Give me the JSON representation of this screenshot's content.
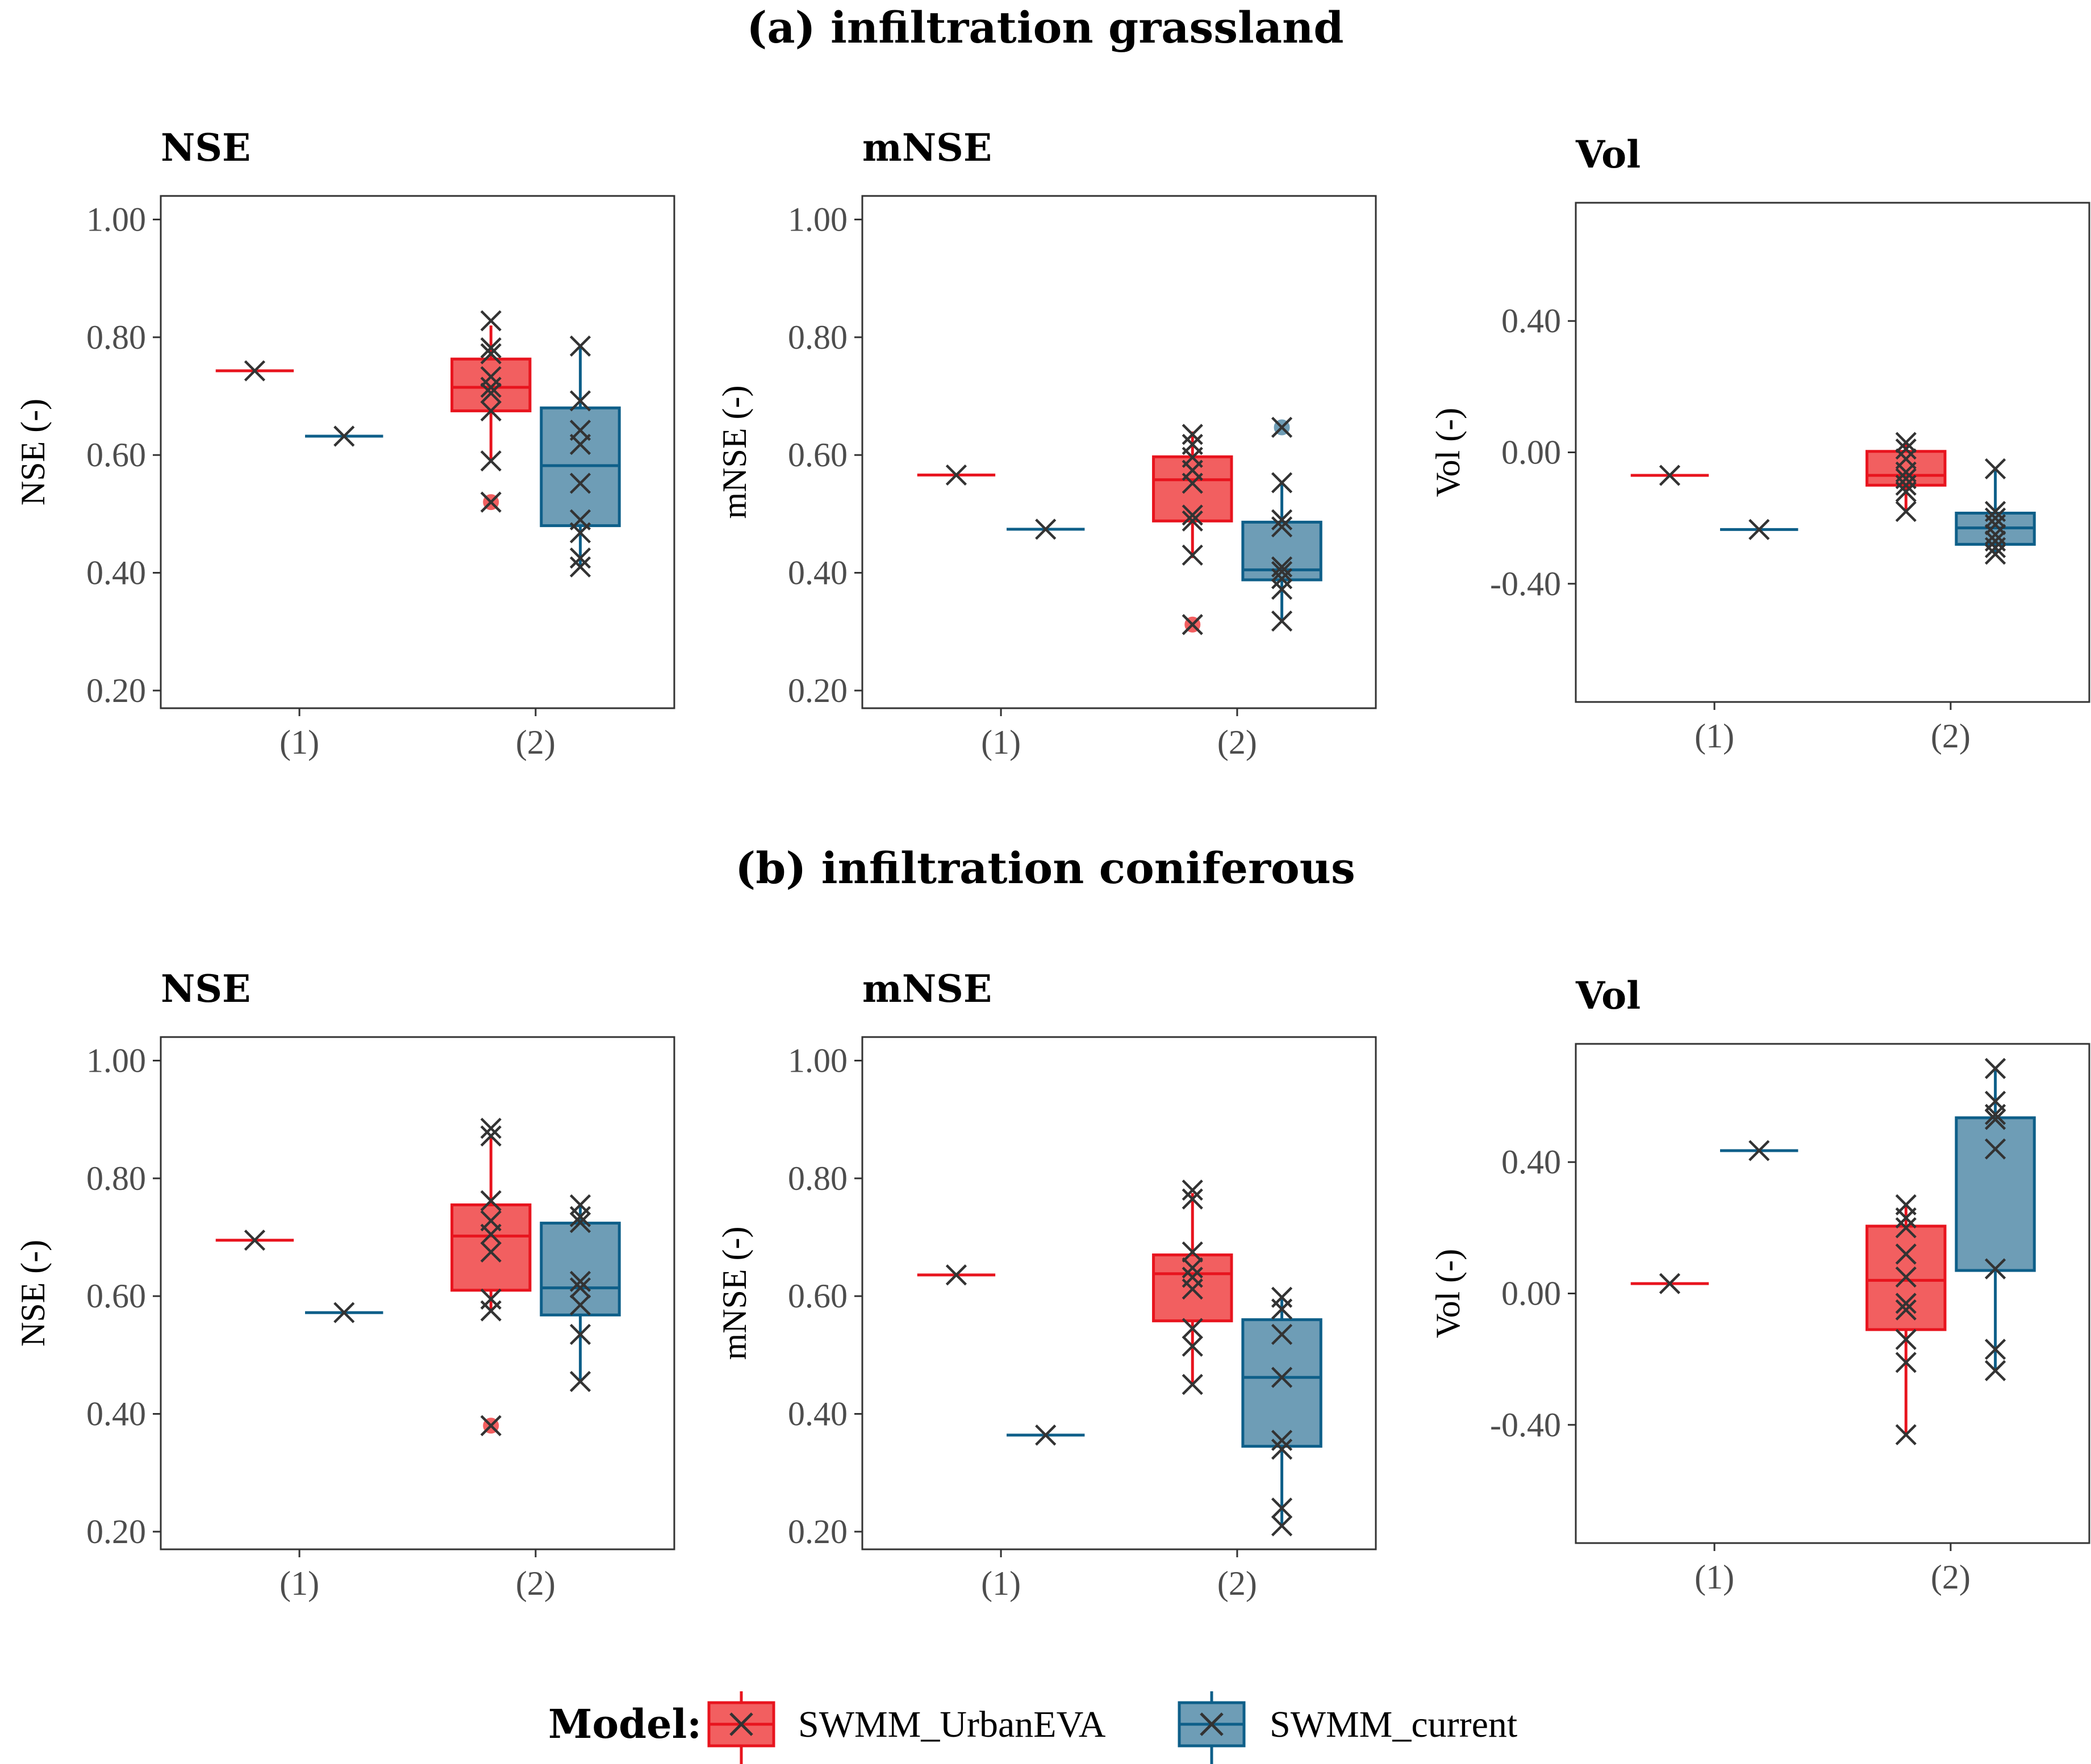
{
  "sections": [
    {
      "title": "(a) infiltration grassland",
      "chart_data": [
        {
          "type": "box",
          "title": "NSE",
          "ylabel": "NSE (-)",
          "ylim": [
            0.17,
            1.04
          ],
          "yticks": [
            1.0,
            0.8,
            0.6,
            0.4,
            0.2
          ],
          "ytick_labels": [
            "1.00",
            "0.80",
            "0.60",
            "0.40",
            "0.20"
          ],
          "categories": [
            "(1)",
            "(2)"
          ],
          "series": [
            {
              "name": "SWMM_UrbanEVA",
              "cat1": {
                "value": 0.743
              },
              "cat2": {
                "q1": 0.675,
                "median": 0.715,
                "q3": 0.763,
                "whisker_low": 0.59,
                "whisker_high": 0.82,
                "outliers": [
                  0.52
                ],
                "points": [
                  0.828,
                  0.782,
                  0.772,
                  0.733,
                  0.715,
                  0.705,
                  0.675,
                  0.59,
                  0.52
                ]
              }
            },
            {
              "name": "SWMM_current",
              "cat1": {
                "value": 0.632
              },
              "cat2": {
                "q1": 0.48,
                "median": 0.582,
                "q3": 0.68,
                "whisker_low": 0.41,
                "whisker_high": 0.785,
                "outliers": [],
                "points": [
                  0.785,
                  0.692,
                  0.642,
                  0.618,
                  0.552,
                  0.49,
                  0.468,
                  0.425,
                  0.41
                ]
              }
            }
          ]
        },
        {
          "type": "box",
          "title": "mNSE",
          "ylabel": "mNSE (-)",
          "ylim": [
            0.17,
            1.04
          ],
          "yticks": [
            1.0,
            0.8,
            0.6,
            0.4,
            0.2
          ],
          "ytick_labels": [
            "1.00",
            "0.80",
            "0.60",
            "0.40",
            "0.20"
          ],
          "categories": [
            "(1)",
            "(2)"
          ],
          "series": [
            {
              "name": "SWMM_UrbanEVA",
              "cat1": {
                "value": 0.566
              },
              "cat2": {
                "q1": 0.488,
                "median": 0.558,
                "q3": 0.597,
                "whisker_low": 0.425,
                "whisker_high": 0.64,
                "outliers": [
                  0.312
                ],
                "points": [
                  0.635,
                  0.618,
                  0.596,
                  0.574,
                  0.552,
                  0.498,
                  0.488,
                  0.43,
                  0.312
                ]
              }
            },
            {
              "name": "SWMM_current",
              "cat1": {
                "value": 0.474
              },
              "cat2": {
                "q1": 0.388,
                "median": 0.405,
                "q3": 0.486,
                "whisker_low": 0.315,
                "whisker_high": 0.555,
                "outliers": [
                  0.647
                ],
                "points": [
                  0.647,
                  0.553,
                  0.49,
                  0.478,
                  0.41,
                  0.402,
                  0.39,
                  0.372,
                  0.318
                ]
              }
            }
          ]
        },
        {
          "type": "box",
          "title": "Vol",
          "ylabel": "Vol (-)",
          "ylim": [
            -0.76,
            0.76
          ],
          "yticks": [
            0.4,
            0.0,
            -0.4
          ],
          "ytick_labels": [
            "0.40",
            "0.00",
            "-0.40"
          ],
          "categories": [
            "(1)",
            "(2)"
          ],
          "series": [
            {
              "name": "SWMM_UrbanEVA",
              "cat1": {
                "value": -0.07
              },
              "cat2": {
                "q1": -0.1,
                "median": -0.07,
                "q3": 0.003,
                "whisker_low": -0.18,
                "whisker_high": 0.03,
                "outliers": [],
                "points": [
                  0.03,
                  0.01,
                  -0.02,
                  -0.06,
                  -0.08,
                  -0.1,
                  -0.12,
                  -0.18
                ]
              }
            },
            {
              "name": "SWMM_current",
              "cat1": {
                "value": -0.235
              },
              "cat2": {
                "q1": -0.28,
                "median": -0.23,
                "q3": -0.185,
                "whisker_low": -0.31,
                "whisker_high": -0.05,
                "outliers": [],
                "points": [
                  -0.05,
                  -0.18,
                  -0.2,
                  -0.22,
                  -0.25,
                  -0.27,
                  -0.29,
                  -0.31
                ]
              }
            }
          ]
        }
      ]
    },
    {
      "title": "(b) infiltration coniferous",
      "chart_data": [
        {
          "type": "box",
          "title": "NSE",
          "ylabel": "NSE (-)",
          "ylim": [
            0.17,
            1.04
          ],
          "yticks": [
            1.0,
            0.8,
            0.6,
            0.4,
            0.2
          ],
          "ytick_labels": [
            "1.00",
            "0.80",
            "0.60",
            "0.40",
            "0.20"
          ],
          "categories": [
            "(1)",
            "(2)"
          ],
          "series": [
            {
              "name": "SWMM_UrbanEVA",
              "cat1": {
                "value": 0.695
              },
              "cat2": {
                "q1": 0.61,
                "median": 0.702,
                "q3": 0.755,
                "whisker_low": 0.575,
                "whisker_high": 0.875,
                "outliers": [
                  0.38
                ],
                "points": [
                  0.885,
                  0.872,
                  0.762,
                  0.728,
                  0.705,
                  0.675,
                  0.595,
                  0.575,
                  0.38
                ]
              }
            },
            {
              "name": "SWMM_current",
              "cat1": {
                "value": 0.572
              },
              "cat2": {
                "q1": 0.568,
                "median": 0.614,
                "q3": 0.724,
                "whisker_low": 0.455,
                "whisker_high": 0.755,
                "outliers": [],
                "points": [
                  0.755,
                  0.735,
                  0.725,
                  0.625,
                  0.614,
                  0.585,
                  0.535,
                  0.455
                ]
              }
            }
          ]
        },
        {
          "type": "box",
          "title": "mNSE",
          "ylabel": "mNSE (-)",
          "ylim": [
            0.17,
            1.04
          ],
          "yticks": [
            1.0,
            0.8,
            0.6,
            0.4,
            0.2
          ],
          "ytick_labels": [
            "1.00",
            "0.80",
            "0.60",
            "0.40",
            "0.20"
          ],
          "categories": [
            "(1)",
            "(2)"
          ],
          "series": [
            {
              "name": "SWMM_UrbanEVA",
              "cat1": {
                "value": 0.636
              },
              "cat2": {
                "q1": 0.558,
                "median": 0.638,
                "q3": 0.67,
                "whisker_low": 0.45,
                "whisker_high": 0.775,
                "outliers": [],
                "points": [
                  0.78,
                  0.765,
                  0.675,
                  0.648,
                  0.632,
                  0.612,
                  0.545,
                  0.515,
                  0.45
                ]
              }
            },
            {
              "name": "SWMM_current",
              "cat1": {
                "value": 0.364
              },
              "cat2": {
                "q1": 0.345,
                "median": 0.462,
                "q3": 0.56,
                "whisker_low": 0.21,
                "whisker_high": 0.598,
                "outliers": [],
                "points": [
                  0.598,
                  0.578,
                  0.535,
                  0.462,
                  0.355,
                  0.34,
                  0.24,
                  0.21
                ]
              }
            }
          ]
        },
        {
          "type": "box",
          "title": "Vol",
          "ylabel": "Vol (-)",
          "ylim": [
            -0.76,
            0.76
          ],
          "yticks": [
            0.4,
            0.0,
            -0.4
          ],
          "ytick_labels": [
            "0.40",
            "0.00",
            "-0.40"
          ],
          "categories": [
            "(1)",
            "(2)"
          ],
          "series": [
            {
              "name": "SWMM_UrbanEVA",
              "cat1": {
                "value": 0.03
              },
              "cat2": {
                "q1": -0.11,
                "median": 0.04,
                "q3": 0.205,
                "whisker_low": -0.43,
                "whisker_high": 0.27,
                "outliers": [],
                "points": [
                  0.27,
                  0.23,
                  0.2,
                  0.12,
                  0.05,
                  -0.03,
                  -0.05,
                  -0.14,
                  -0.21,
                  -0.43
                ]
              }
            },
            {
              "name": "SWMM_current",
              "cat1": {
                "value": 0.435
              },
              "cat2": {
                "q1": 0.07,
                "median": 0.07,
                "q3": 0.535,
                "whisker_low": -0.235,
                "whisker_high": 0.685,
                "outliers": [],
                "points": [
                  0.685,
                  0.585,
                  0.545,
                  0.53,
                  0.44,
                  0.075,
                  -0.17,
                  -0.235
                ]
              }
            }
          ]
        }
      ]
    }
  ],
  "legend": {
    "title": "Model:",
    "items": [
      {
        "label": "SWMM_UrbanEVA",
        "color": "#e8141e",
        "fill": "#f25f60"
      },
      {
        "label": "SWMM_current",
        "color": "#0e5f89",
        "fill": "#6e9db6"
      }
    ]
  },
  "colors": {
    "red_line": "#e8141e",
    "red_fill": "#f25f60",
    "blue_line": "#0e5f89",
    "blue_fill": "#6e9db6",
    "point": "#333333"
  }
}
